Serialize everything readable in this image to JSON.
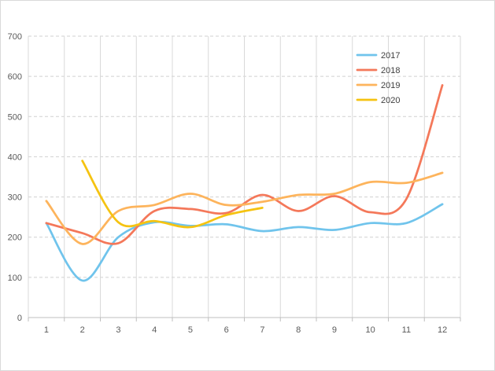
{
  "chart_data": {
    "type": "line",
    "title": "",
    "xlabel": "",
    "ylabel": "",
    "x": [
      1,
      2,
      3,
      4,
      5,
      6,
      7,
      8,
      9,
      10,
      11,
      12
    ],
    "ylim": [
      0,
      700
    ],
    "y_ticks": [
      0,
      100,
      200,
      300,
      400,
      500,
      600,
      700
    ],
    "grid": {
      "horizontal": "dashed",
      "vertical": "solid"
    },
    "legend_position": "top-right",
    "series": [
      {
        "name": "2017",
        "color": "#70c4ec",
        "values": [
          235,
          92,
          200,
          237,
          228,
          232,
          215,
          225,
          218,
          235,
          235,
          282
        ]
      },
      {
        "name": "2018",
        "color": "#f4785a",
        "values": [
          235,
          210,
          185,
          265,
          270,
          260,
          305,
          265,
          302,
          262,
          295,
          578
        ]
      },
      {
        "name": "2019",
        "color": "#fdb45c",
        "values": [
          290,
          183,
          265,
          280,
          308,
          280,
          288,
          305,
          308,
          337,
          335,
          360
        ]
      },
      {
        "name": "2020",
        "color": "#f5c311",
        "values": [
          null,
          390,
          237,
          240,
          225,
          255,
          273,
          null,
          null,
          null,
          null,
          null
        ]
      }
    ]
  }
}
